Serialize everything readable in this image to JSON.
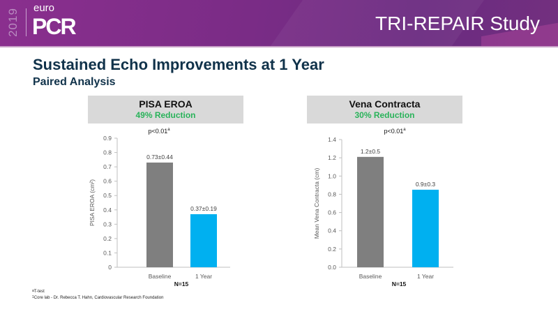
{
  "header": {
    "logo_year": "2019",
    "logo_euro": "euro",
    "logo_pcr": "PCR",
    "study_title": "TRI-REPAIR Study"
  },
  "title": "Sustained Echo Improvements at 1 Year",
  "subtitle": "Paired Analysis",
  "colors": {
    "baseline_bar": "#7f7f7f",
    "year_bar": "#00b0f0",
    "reduction_text": "#29b35a",
    "title_text": "#10324a",
    "header_purple": "#7a2c86"
  },
  "panels": [
    {
      "title": "PISA EROA",
      "reduction": "49% Reduction"
    },
    {
      "title": "Vena Contracta",
      "reduction": "30% Reduction"
    }
  ],
  "footnotes": [
    {
      "marker": "a",
      "text": "T-test"
    },
    {
      "marker": "1",
      "text": "Core lab - Dr. Rebecca T. Hahn, Cardiovascular Research Foundation"
    }
  ],
  "chart_data": [
    {
      "type": "bar",
      "title": "PISA EROA",
      "annotation": "p<0.01",
      "annotation_superscript": "a",
      "categories": [
        "Baseline",
        "1 Year"
      ],
      "values": [
        0.73,
        0.37
      ],
      "data_labels": [
        "0.73±0.44",
        "0.37±0.19"
      ],
      "ylabel": "PISA EROA (cm²)",
      "xlabel": "N=15",
      "ylim": [
        0,
        0.9
      ],
      "yticks": [
        "0",
        "0.1",
        "0.2",
        "0.3",
        "0.4",
        "0.5",
        "0.6",
        "0.7",
        "0.8",
        "0.9"
      ],
      "grid": false
    },
    {
      "type": "bar",
      "title": "Vena Contracta",
      "annotation": "p<0.01",
      "annotation_superscript": "a",
      "categories": [
        "Baseline",
        "1 Year"
      ],
      "values": [
        1.21,
        0.85
      ],
      "data_labels": [
        "1.2±0.5",
        "0.9±0.3"
      ],
      "ylabel": "Mean Vena Contracta (cm)",
      "xlabel": "N=15",
      "ylim": [
        0,
        1.4
      ],
      "yticks": [
        "0.0",
        "0.2",
        "0.4",
        "0.6",
        "0.8",
        "1.0",
        "1.2",
        "1.4"
      ],
      "grid": false
    }
  ]
}
